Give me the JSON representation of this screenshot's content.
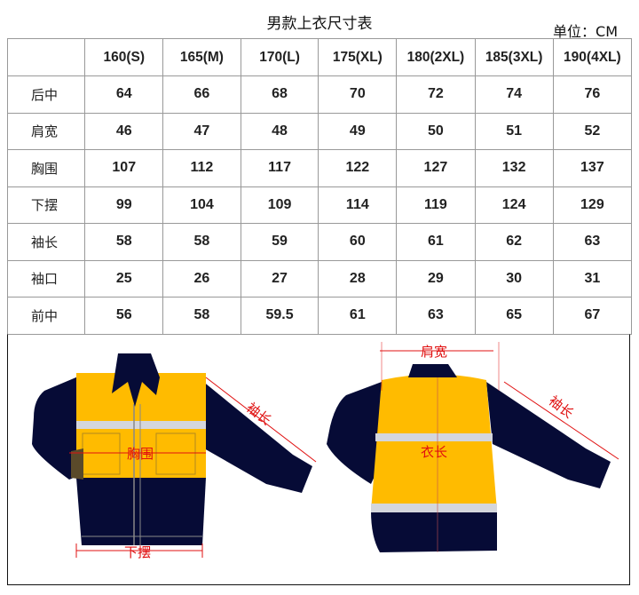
{
  "title": "男款上衣尺寸表",
  "unit": "单位：CM",
  "table": {
    "headers": [
      "",
      "160(S)",
      "165(M)",
      "170(L)",
      "175(XL)",
      "180(2XL)",
      "185(3XL)",
      "190(4XL)"
    ],
    "rows": [
      {
        "label": "后中",
        "values": [
          "64",
          "66",
          "68",
          "70",
          "72",
          "74",
          "76"
        ]
      },
      {
        "label": "肩宽",
        "values": [
          "46",
          "47",
          "48",
          "49",
          "50",
          "51",
          "52"
        ]
      },
      {
        "label": "胸围",
        "values": [
          "107",
          "112",
          "117",
          "122",
          "127",
          "132",
          "137"
        ]
      },
      {
        "label": "下摆",
        "values": [
          "99",
          "104",
          "109",
          "114",
          "119",
          "124",
          "129"
        ]
      },
      {
        "label": "袖长",
        "values": [
          "58",
          "58",
          "59",
          "60",
          "61",
          "62",
          "63"
        ]
      },
      {
        "label": "袖口",
        "values": [
          "25",
          "26",
          "27",
          "28",
          "29",
          "30",
          "31"
        ]
      },
      {
        "label": "前中",
        "values": [
          "56",
          "58",
          "59.5",
          "61",
          "63",
          "65",
          "67"
        ]
      }
    ]
  },
  "diagram": {
    "front_labels": {
      "chest": "胸围",
      "hem": "下摆",
      "sleeve": "袖长"
    },
    "back_labels": {
      "shoulder": "肩宽",
      "length": "衣长",
      "sleeve": "袖长"
    },
    "colors": {
      "navy": "#060b36",
      "yellow": "#ffbb00",
      "reflective": "#d4d6dc",
      "measure": "#e01010"
    }
  }
}
